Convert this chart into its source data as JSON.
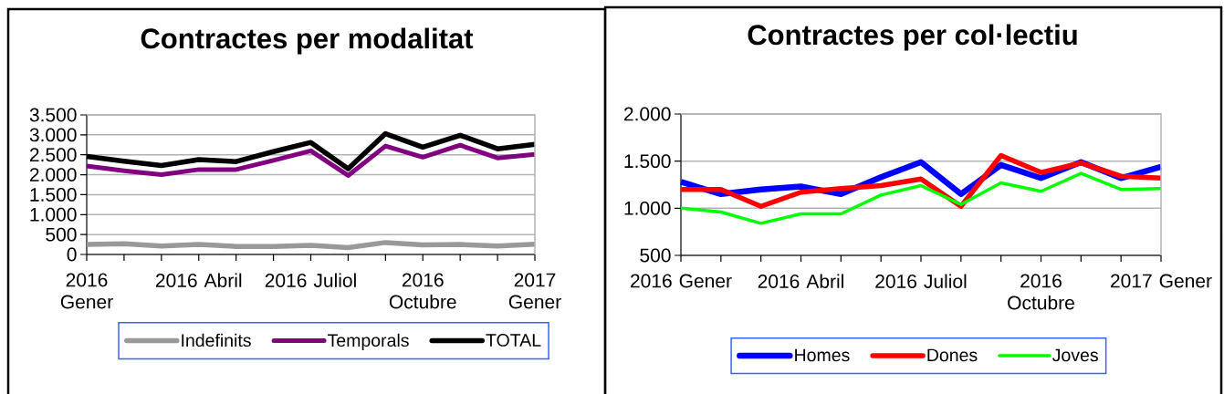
{
  "chart_data": [
    {
      "type": "line",
      "title": "Contractes per modalitat",
      "categories": [
        "2016 Gener",
        null,
        null,
        "2016 Abril",
        null,
        null,
        "2016 Juliol",
        null,
        null,
        "2016 Octubre",
        null,
        null,
        "2017 Gener"
      ],
      "series": [
        {
          "name": "Indefinits",
          "color": "#999999",
          "values": [
            250,
            270,
            210,
            250,
            200,
            200,
            230,
            170,
            300,
            240,
            250,
            210,
            260
          ]
        },
        {
          "name": "Temporals",
          "color": "#800080",
          "values": [
            2220,
            2100,
            2000,
            2130,
            2130,
            2360,
            2600,
            1980,
            2720,
            2440,
            2740,
            2420,
            2510
          ]
        },
        {
          "name": "TOTAL",
          "color": "#000000",
          "values": [
            2460,
            2340,
            2230,
            2380,
            2330,
            2580,
            2810,
            2150,
            3030,
            2690,
            2990,
            2650,
            2760
          ]
        }
      ],
      "ylim": [
        0,
        3500
      ],
      "yticks": [
        0,
        500,
        {
          "value": 1000,
          "label": "1.000"
        },
        {
          "value": 1500,
          "label": "1.500"
        },
        {
          "value": 2000,
          "label": "2.000"
        },
        {
          "value": 2500,
          "label": "2.500"
        },
        {
          "value": 3000,
          "label": "3.000"
        },
        {
          "value": 3500,
          "label": "3.500"
        }
      ],
      "grid": "y",
      "legend": "bottom"
    },
    {
      "type": "line",
      "title": "Contractes per col·lectiu",
      "categories": [
        "2016 Gener",
        null,
        null,
        "2016 Abril",
        null,
        null,
        "2016 Juliol",
        null,
        null,
        "2016 Octubre",
        null,
        null,
        "2017 Gener"
      ],
      "series": [
        {
          "name": "Homes",
          "color": "#0000ff",
          "values": [
            1280,
            1150,
            1200,
            1230,
            1150,
            1330,
            1490,
            1150,
            1460,
            1320,
            1490,
            1320,
            1440
          ]
        },
        {
          "name": "Dones",
          "color": "#ff0000",
          "values": [
            1200,
            1200,
            1020,
            1170,
            1210,
            1240,
            1310,
            1020,
            1560,
            1380,
            1480,
            1340,
            1320
          ]
        },
        {
          "name": "Joves",
          "color": "#00ff00",
          "values": [
            1000,
            960,
            840,
            940,
            940,
            1140,
            1240,
            1040,
            1270,
            1180,
            1370,
            1200,
            1210
          ]
        }
      ],
      "ylim": [
        500,
        2000
      ],
      "yticks": [
        500,
        {
          "value": 1000,
          "label": "1.000"
        },
        {
          "value": 1500,
          "label": "1.500"
        },
        {
          "value": 2000,
          "label": "2.000"
        }
      ],
      "grid": "y",
      "legend": "bottom"
    }
  ]
}
